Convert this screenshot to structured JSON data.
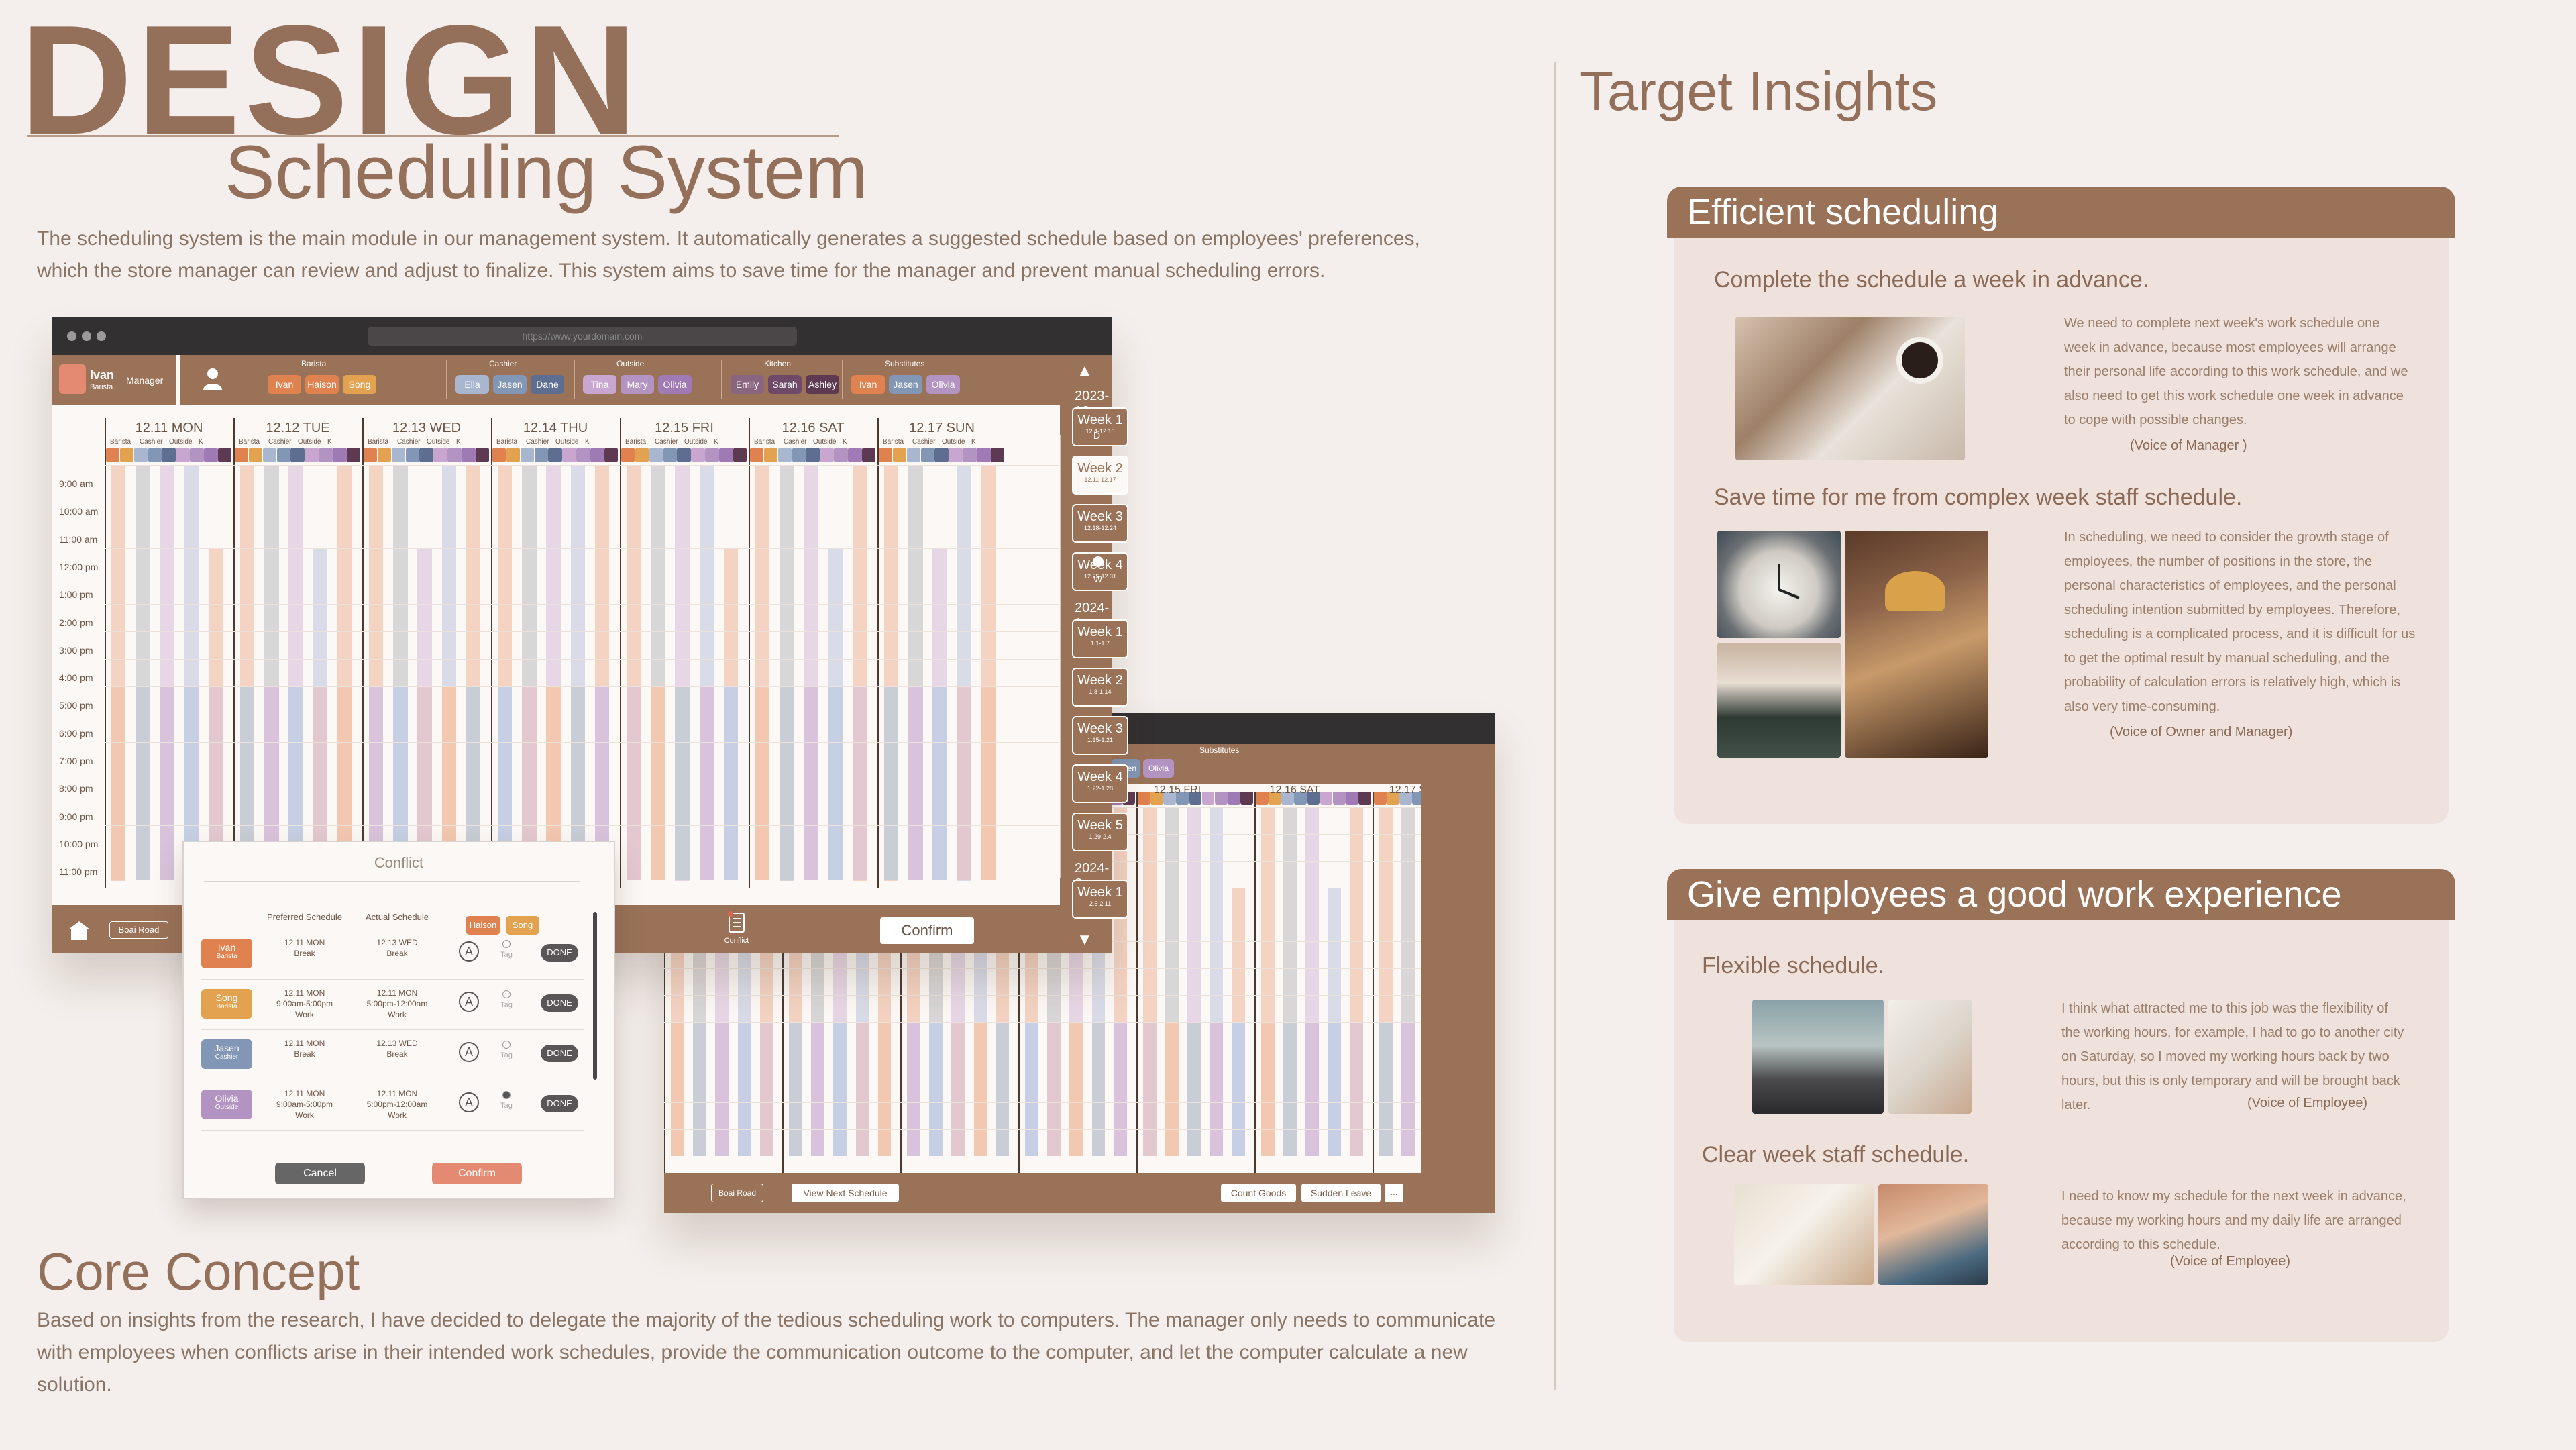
{
  "header": {
    "title": "DESIGN",
    "subtitle": "Scheduling System",
    "intro": "The scheduling system is the main module in our management system. It automatically generates a suggested schedule based on employees' preferences, which the store manager can review and adjust to finalize. This system aims to save time for the manager and prevent manual scheduling errors."
  },
  "core": {
    "title": "Core Concept",
    "body": "Based on insights from the research, I have decided to delegate the majority of the tedious scheduling work to computers. The manager only needs to communicate with employees when conflicts arise in their intended work schedules, provide the communication outcome to the computer, and let the computer calculate a new solution."
  },
  "insights": {
    "title": "Target Insights",
    "panel1": {
      "title": "Efficient scheduling",
      "sub1": "Complete the schedule a week in advance.",
      "quote1": "We need to complete next week's work schedule one week in advance, because most employees will arrange their personal life according to this work schedule, and we also need to get this work schedule one week in advance to cope with possible changes.",
      "voice1": "(Voice of Manager )",
      "sub2": "Save time for me from complex week staff schedule.",
      "quote2": "In scheduling, we need to consider the growth stage of employees, the number of positions in the store, the personal characteristics of employees, and the personal scheduling intention submitted by employees. Therefore, scheduling is a complicated process, and it is difficult for us to get the optimal result by manual scheduling, and the probability of calculation errors is relatively high, which is also very time-consuming.",
      "voice2": "(Voice of Owner and Manager)"
    },
    "panel2": {
      "title": "Give employees a good work experience",
      "sub1": "Flexible schedule.",
      "quote1": "I think what attracted me to this job was the flexibility of the working hours, for example, I had to go to another city on Saturday, so I moved my working hours back by two hours, but this is only temporary and will be brought back later.",
      "voice1": "(Voice of Employee)",
      "sub2": "Clear week staff schedule.",
      "quote2": "I need to know my schedule for the next week in advance, because my working hours and my daily life are arranged according to this schedule.",
      "voice2": "(Voice of Employee)"
    }
  },
  "app": {
    "url": "https://www.yourdomain.com",
    "user": {
      "name": "Ivan",
      "role": "Barista",
      "badge": "Manager"
    },
    "groups": [
      {
        "label": "Barista",
        "chips": [
          {
            "name": "Ivan",
            "color": "#e0824f"
          },
          {
            "name": "Haison",
            "color": "#e0824f"
          },
          {
            "name": "Song",
            "color": "#e3a24f"
          }
        ]
      },
      {
        "label": "Cashier",
        "chips": [
          {
            "name": "Ella",
            "color": "#a8b6cf"
          },
          {
            "name": "Jasen",
            "color": "#8296b5"
          },
          {
            "name": "Dane",
            "color": "#5d6e90"
          }
        ]
      },
      {
        "label": "Outside",
        "chips": [
          {
            "name": "Tina",
            "color": "#c9a6cf"
          },
          {
            "name": "Mary",
            "color": "#b393c2"
          },
          {
            "name": "Olivia",
            "color": "#a07ab4"
          }
        ]
      },
      {
        "label": "Kitchen",
        "chips": [
          {
            "name": "Emily",
            "color": "#8a6580"
          },
          {
            "name": "Sarah",
            "color": "#6f4a68"
          },
          {
            "name": "Ashley",
            "color": "#5e3a52"
          }
        ]
      },
      {
        "label": "Substitutes",
        "chips": [
          {
            "name": "Ivan",
            "color": "#e0824f"
          },
          {
            "name": "Jasen",
            "color": "#8296b5"
          },
          {
            "name": "Olivia",
            "color": "#b393c2"
          }
        ]
      }
    ],
    "days": [
      "12.11 MON",
      "12.12 TUE",
      "12.13 WED",
      "12.14 THU",
      "12.15 FRI",
      "12.16 SAT",
      "12.17 SUN"
    ],
    "columns": [
      "Barista",
      "Cashier",
      "Outside",
      "K"
    ],
    "times": [
      "9:00 am",
      "10:00 am",
      "11:00 am",
      "12:00 pm",
      "1:00 pm",
      "2:00 pm",
      "3:00 pm",
      "4:00 pm",
      "5:00 pm",
      "6:00 pm",
      "7:00 pm",
      "8:00 pm",
      "9:00 pm",
      "10:00 pm",
      "11:00 pm"
    ],
    "weeks": [
      {
        "year": "2023-12"
      },
      {
        "label": "Week 1",
        "range": "12.4-12.10"
      },
      {
        "label": "Week 2",
        "range": "12.11-12.17",
        "active": true
      },
      {
        "label": "Week 3",
        "range": "12.18-12.24"
      },
      {
        "label": "Week 4",
        "range": "12.25-12.31"
      },
      {
        "year": "2024-1"
      },
      {
        "label": "Week 1",
        "range": "1.1-1.7"
      },
      {
        "label": "Week 2",
        "range": "1.8-1.14"
      },
      {
        "label": "Week 3",
        "range": "1.15-1.21"
      },
      {
        "label": "Week 4",
        "range": "1.22-1.28"
      },
      {
        "label": "Week 5",
        "range": "1.29-2.4"
      },
      {
        "year": "2024-2"
      },
      {
        "label": "Week 1",
        "range": "2.5-2.11"
      }
    ],
    "side_letters": {
      "d": "D",
      "w": "W"
    },
    "footer": {
      "location": "Boai Road",
      "conflict": "Conflict",
      "confirm": "Confirm",
      "view_next": "View Next Schedule",
      "count_goods": "Count Goods",
      "sudden_leave": "Sudden Leave",
      "more": "..."
    }
  },
  "conflict": {
    "title": "Conflict",
    "col_pref": "Preferred Schedule",
    "col_actual": "Actual Schedule",
    "subs": [
      "Haison",
      "Song"
    ],
    "tag": "Tag",
    "done": "DONE",
    "rows": [
      {
        "name": "Ivan",
        "role": "Barista",
        "color": "#e0824f",
        "pref": [
          "12.11 MON",
          "Break"
        ],
        "actual": [
          "12.13 WED",
          "Break"
        ]
      },
      {
        "name": "Song",
        "role": "Barista",
        "color": "#e3a24f",
        "pref": [
          "12.11 MON",
          "9:00am-5:00pm",
          "Work"
        ],
        "actual": [
          "12.11 MON",
          "5:00pm-12:00am",
          "Work"
        ]
      },
      {
        "name": "Jasen",
        "role": "Cashier",
        "color": "#8296b5",
        "pref": [
          "12.11 MON",
          "Break"
        ],
        "actual": [
          "12.13 WED",
          "Break"
        ]
      },
      {
        "name": "Olivia",
        "role": "Outside",
        "color": "#b393c2",
        "pref": [
          "12.11 MON",
          "9:00am-5:00pm",
          "Work"
        ],
        "actual": [
          "12.11 MON",
          "5:00pm-12:00am",
          "Work"
        ]
      }
    ],
    "cancel": "Cancel",
    "confirm": "Confirm"
  }
}
